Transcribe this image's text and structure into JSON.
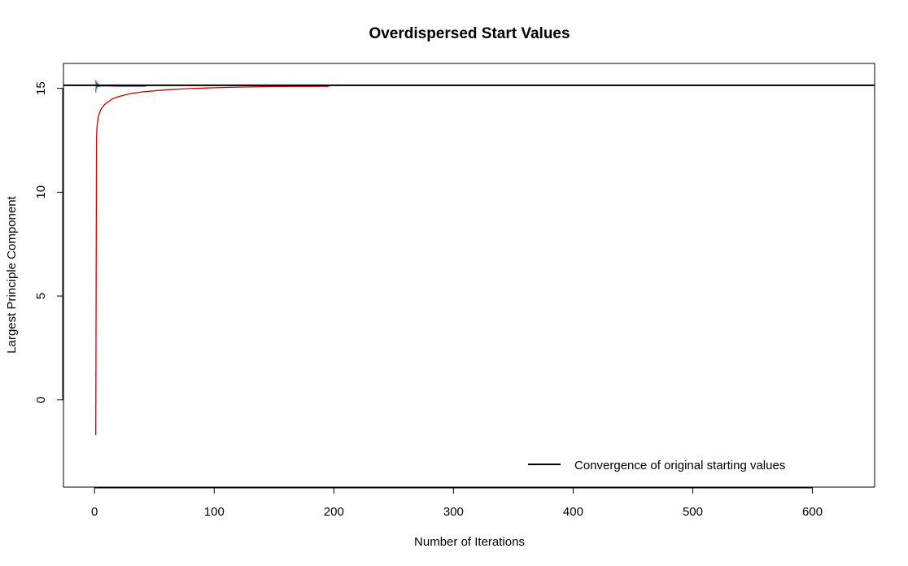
{
  "chart_data": {
    "type": "line",
    "title": "Overdispersed Start Values",
    "xlabel": "Number of Iterations",
    "ylabel": "Largest Principle Component",
    "xlim": [
      -26,
      652
    ],
    "ylim": [
      -4.2,
      16.2
    ],
    "x_ticks": [
      0,
      100,
      200,
      300,
      400,
      500,
      600
    ],
    "y_ticks": [
      0,
      5,
      10,
      15
    ],
    "grid": false,
    "legend": {
      "position": "bottom-right",
      "entries": [
        {
          "label": "Convergence of original starting values",
          "color": "#000000"
        }
      ]
    },
    "reference_line": {
      "y": 15.15,
      "color": "#000000"
    },
    "series": [
      {
        "color": "#cc0000",
        "x": [
          1,
          1.3,
          1.6,
          2,
          2.5,
          3,
          4,
          5,
          6,
          8,
          10,
          15,
          20,
          30,
          40,
          50,
          60,
          80,
          100,
          120,
          150,
          196
        ],
        "y": [
          -1.7,
          5.4,
          12.6,
          13.1,
          13.4,
          13.6,
          13.8,
          13.95,
          14.05,
          14.2,
          14.3,
          14.5,
          14.6,
          14.75,
          14.83,
          14.88,
          14.93,
          14.99,
          15.03,
          15.06,
          15.09,
          15.1
        ]
      },
      {
        "color": "#b040b0",
        "x": [
          1,
          1.5,
          2,
          2.5,
          3,
          4,
          5,
          6,
          8
        ],
        "y": [
          15.4,
          15.0,
          15.3,
          15.1,
          15.2,
          15.12,
          15.15,
          15.13,
          15.12
        ]
      },
      {
        "color": "#1a8a8a",
        "x": [
          1,
          1.5,
          2,
          2.5,
          3,
          4,
          6
        ],
        "y": [
          14.8,
          15.25,
          15.0,
          15.18,
          15.1,
          15.13,
          15.12
        ]
      },
      {
        "color": "#000099",
        "x": [
          3,
          5,
          10,
          20,
          30,
          43
        ],
        "y": [
          15.1,
          15.12,
          15.12,
          15.11,
          15.11,
          15.11
        ]
      }
    ]
  }
}
